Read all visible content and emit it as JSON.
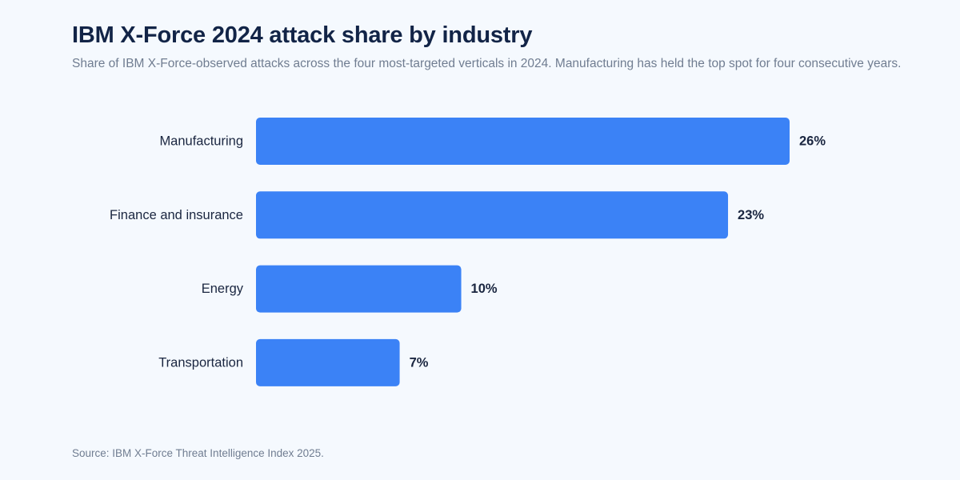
{
  "header": {
    "title": "IBM X-Force 2024 attack share by industry",
    "subtitle": "Share of IBM X-Force-observed attacks across the four most-targeted verticals in 2024. Manufacturing has held the top spot for four consecutive years."
  },
  "footer": {
    "source": "Source: IBM X-Force Threat Intelligence Index 2025."
  },
  "colors": {
    "background": "#f5f9fe",
    "bar": "#3b82f6",
    "title": "#122447",
    "label": "#1a2640",
    "muted": "#707d91"
  },
  "chart_data": {
    "type": "bar",
    "orientation": "horizontal",
    "categories": [
      "Manufacturing",
      "Finance and insurance",
      "Energy",
      "Transportation"
    ],
    "values": [
      26,
      23,
      10,
      7
    ],
    "value_labels": [
      "26%",
      "23%",
      "10%",
      "7%"
    ],
    "unit": "%",
    "title": "IBM X-Force 2024 attack share by industry",
    "xlabel": "",
    "ylabel": "",
    "xlim": [
      0,
      26
    ],
    "grid": false,
    "legend": "none"
  }
}
